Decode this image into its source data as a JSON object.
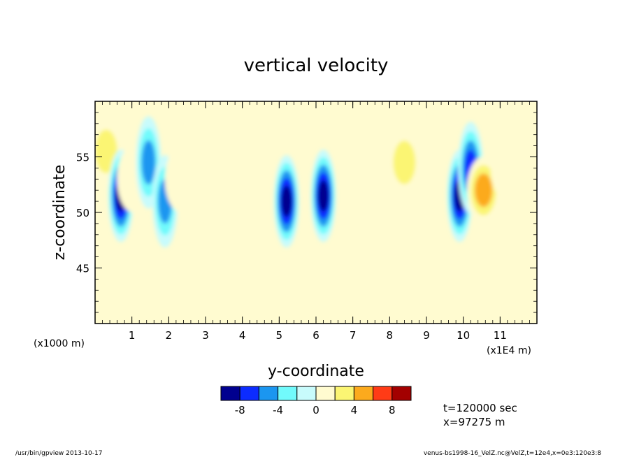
{
  "chart_data": {
    "type": "heatmap",
    "title": "vertical velocity",
    "xlabel": "y-coordinate",
    "ylabel": "z-coordinate",
    "x_scale_note": "(x1E4 m)",
    "y_scale_note": "(x1000 m)",
    "xlim": [
      0,
      12
    ],
    "ylim": [
      40,
      60
    ],
    "x_ticks": [
      "1",
      "2",
      "3",
      "4",
      "5",
      "6",
      "7",
      "8",
      "9",
      "10",
      "11"
    ],
    "y_ticks": [
      "45",
      "50",
      "55"
    ],
    "colorbar": {
      "tick_labels": [
        "-8",
        "-4",
        "0",
        "4",
        "8"
      ],
      "colors": [
        "#00008f",
        "#0c2cff",
        "#1b96f0",
        "#71fafc",
        "#c8fbfc",
        "#fffbd0",
        "#fbf573",
        "#fcaa1d",
        "#ff3b16",
        "#a30000"
      ]
    },
    "features": [
      {
        "y": 0.3,
        "z": 55.5,
        "value": 4.0
      },
      {
        "y": 0.7,
        "z": 51.5,
        "value": -9.5
      },
      {
        "y": 1.05,
        "z": 53.0,
        "value": 1.5
      },
      {
        "y": 1.45,
        "z": 54.5,
        "value": -4.5
      },
      {
        "y": 1.9,
        "z": 51.0,
        "value": -6.0
      },
      {
        "y": 2.35,
        "z": 53.0,
        "value": 1.5
      },
      {
        "y": 3.5,
        "z": 52.0,
        "value": 1.5
      },
      {
        "y": 5.2,
        "z": 51.0,
        "value": -9.5
      },
      {
        "y": 6.2,
        "z": 51.5,
        "value": -9.5
      },
      {
        "y": 7.7,
        "z": 52.0,
        "value": 2.0
      },
      {
        "y": 8.4,
        "z": 54.5,
        "value": 4.0
      },
      {
        "y": 9.9,
        "z": 51.5,
        "value": -9.5
      },
      {
        "y": 10.2,
        "z": 54.0,
        "value": -7.0
      },
      {
        "y": 10.55,
        "z": 52.0,
        "value": 4.5
      },
      {
        "y": 11.2,
        "z": 54.0,
        "value": 1.5
      }
    ],
    "annotations": {
      "time": "t=120000 sec",
      "position": "x=97275 m"
    }
  },
  "footer": {
    "left": "/usr/bin/gpview  2013-10-17",
    "right": "venus-bs1998-16_VelZ.nc@VelZ,t=12e4,x=0e3:120e3:8"
  }
}
